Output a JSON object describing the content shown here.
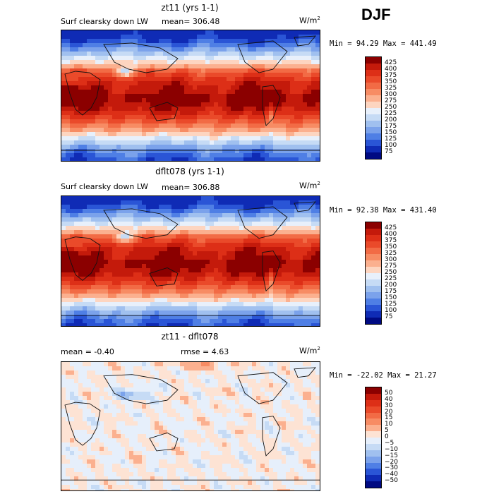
{
  "season": "DJF",
  "units": "W/m",
  "units_exp": "2",
  "chart_data": [
    {
      "type": "heatmap",
      "title": "zt11 (yrs 1-1)",
      "field_label": "Surf clearsky down LW",
      "stat_text": "mean= 306.48",
      "minmax_text": "Min =  94.29 Max = 441.49",
      "levels": [
        425,
        400,
        375,
        350,
        325,
        300,
        275,
        250,
        225,
        200,
        175,
        150,
        125,
        100,
        75
      ],
      "level_labels": [
        "425",
        "400",
        "375",
        "350",
        "325",
        "300",
        "275",
        "250",
        "225",
        "200",
        "175",
        "150",
        "125",
        "100",
        "75"
      ],
      "colors": [
        "#8b0000",
        "#c41a0b",
        "#dd2f17",
        "#ea4a2a",
        "#f26b45",
        "#f78c64",
        "#fbb08f",
        "#fdd5c0",
        "#e8f0fb",
        "#c6dbf5",
        "#a0c0ef",
        "#7ba2eb",
        "#4f7fe5",
        "#2a55d6",
        "#0f2bb5",
        "#000a82"
      ],
      "value_range": [
        94.29,
        441.49
      ]
    },
    {
      "type": "heatmap",
      "title": "dflt078 (yrs 1-1)",
      "field_label": "Surf clearsky down LW",
      "stat_text": "mean= 306.88",
      "minmax_text": "Min =  92.38 Max = 431.40",
      "levels": [
        425,
        400,
        375,
        350,
        325,
        300,
        275,
        250,
        225,
        200,
        175,
        150,
        125,
        100,
        75
      ],
      "level_labels": [
        "425",
        "400",
        "375",
        "350",
        "325",
        "300",
        "275",
        "250",
        "225",
        "200",
        "175",
        "150",
        "125",
        "100",
        "75"
      ],
      "colors": [
        "#8b0000",
        "#c41a0b",
        "#dd2f17",
        "#ea4a2a",
        "#f26b45",
        "#f78c64",
        "#fbb08f",
        "#fdd5c0",
        "#e8f0fb",
        "#c6dbf5",
        "#a0c0ef",
        "#7ba2eb",
        "#4f7fe5",
        "#2a55d6",
        "#0f2bb5",
        "#000a82"
      ],
      "value_range": [
        92.38,
        431.4
      ]
    },
    {
      "type": "heatmap",
      "title": "zt11 - dflt078",
      "stat_text": "mean =   -0.40",
      "rmse_text": "rmse =    4.63",
      "minmax_text": "Min = -22.02 Max =  21.27",
      "levels": [
        50,
        40,
        30,
        20,
        15,
        10,
        5,
        0,
        -5,
        -10,
        -15,
        -20,
        -30,
        -40,
        -50
      ],
      "level_labels": [
        "50",
        "40",
        "30",
        "20",
        "15",
        "10",
        "5",
        "0",
        "−5",
        "−10",
        "−15",
        "−20",
        "−30",
        "−40",
        "−50"
      ],
      "colors": [
        "#8b0000",
        "#c41a0b",
        "#dd2f17",
        "#ea4a2a",
        "#f26b45",
        "#f78c64",
        "#fbb08f",
        "#fde3d4",
        "#e6effb",
        "#c6dbf5",
        "#a0c0ef",
        "#7ba2eb",
        "#4f7fe5",
        "#2a55d6",
        "#0f2bb5",
        "#000a82"
      ],
      "value_range": [
        -22.02,
        21.27
      ]
    }
  ]
}
